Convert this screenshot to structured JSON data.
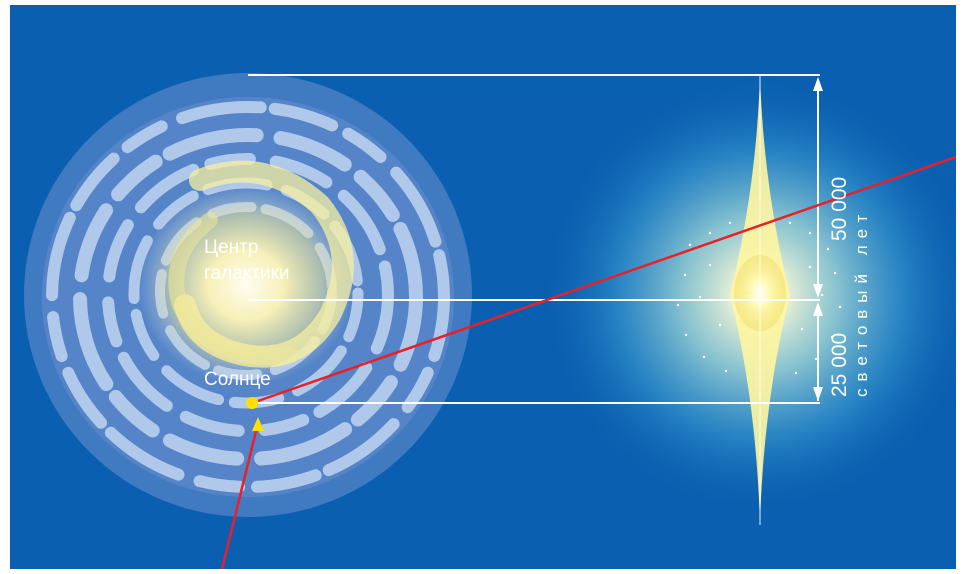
{
  "labels": {
    "center_line1": "Центр",
    "center_line2": "галактики",
    "sun": "Солнце",
    "dist_top": "50 000",
    "dist_bottom": "25 000",
    "units": "световый лет"
  },
  "colors": {
    "background": "#0a5fb0",
    "disc": "#8eaee0",
    "core": "#fff8c0",
    "sun": "#ffe000",
    "pointer_line": "#e8202a",
    "dimension_lines": "#ffffff"
  }
}
